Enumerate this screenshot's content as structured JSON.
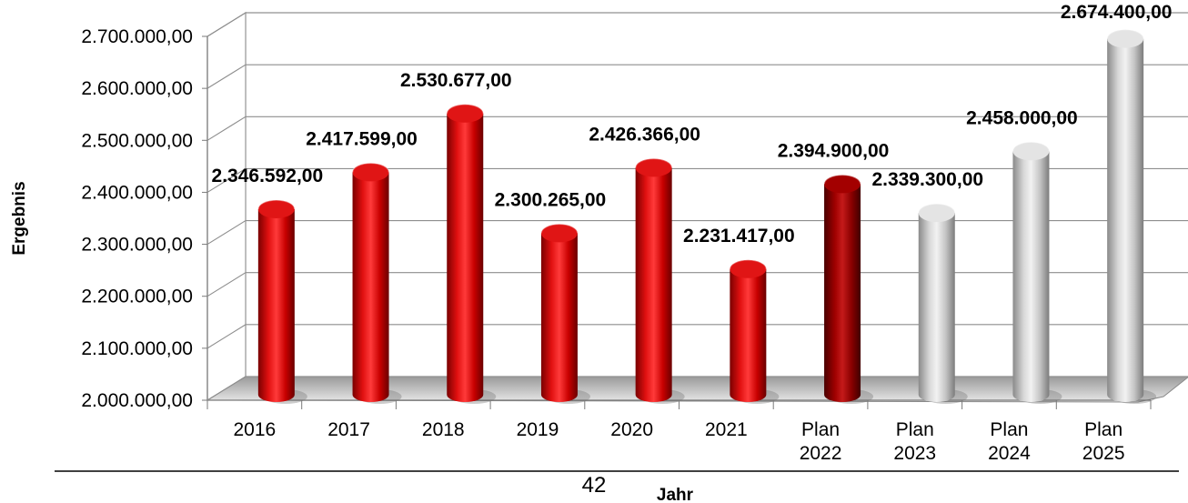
{
  "chart_data": {
    "type": "bar",
    "categories": [
      "2016",
      "2017",
      "2018",
      "2019",
      "2020",
      "2021",
      "Plan 2022",
      "Plan 2023",
      "Plan 2024",
      "Plan 2025"
    ],
    "values": [
      2346592,
      2417599,
      2530677,
      2300265,
      2426366,
      2231417,
      2394900,
      2339300,
      2458000,
      2674400
    ],
    "value_labels": [
      "2.346.592,00",
      "2.417.599,00",
      "2.530.677,00",
      "2.300.265,00",
      "2.426.366,00",
      "2.231.417,00",
      "2.394.900,00",
      "2.339.300,00",
      "2.458.000,00",
      "2.674.400,00"
    ],
    "bar_colors": [
      "#cc0000",
      "#cc0000",
      "#cc0000",
      "#cc0000",
      "#cc0000",
      "#cc0000",
      "#990000",
      "#c8c8c8",
      "#c8c8c8",
      "#c8c8c8"
    ],
    "ylim": [
      2000000,
      2700000
    ],
    "yticks": [
      "2.000.000,00",
      "2.100.000,00",
      "2.200.000,00",
      "2.300.000,00",
      "2.400.000,00",
      "2.500.000,00",
      "2.600.000,00",
      "2.700.000,00"
    ],
    "ytick_values": [
      2000000,
      2100000,
      2200000,
      2300000,
      2400000,
      2500000,
      2600000,
      2700000
    ],
    "xlabel": "Jahr",
    "ylabel": "Ergebnis",
    "grid": true,
    "style": "3d-cylinder"
  },
  "page_number": "42"
}
